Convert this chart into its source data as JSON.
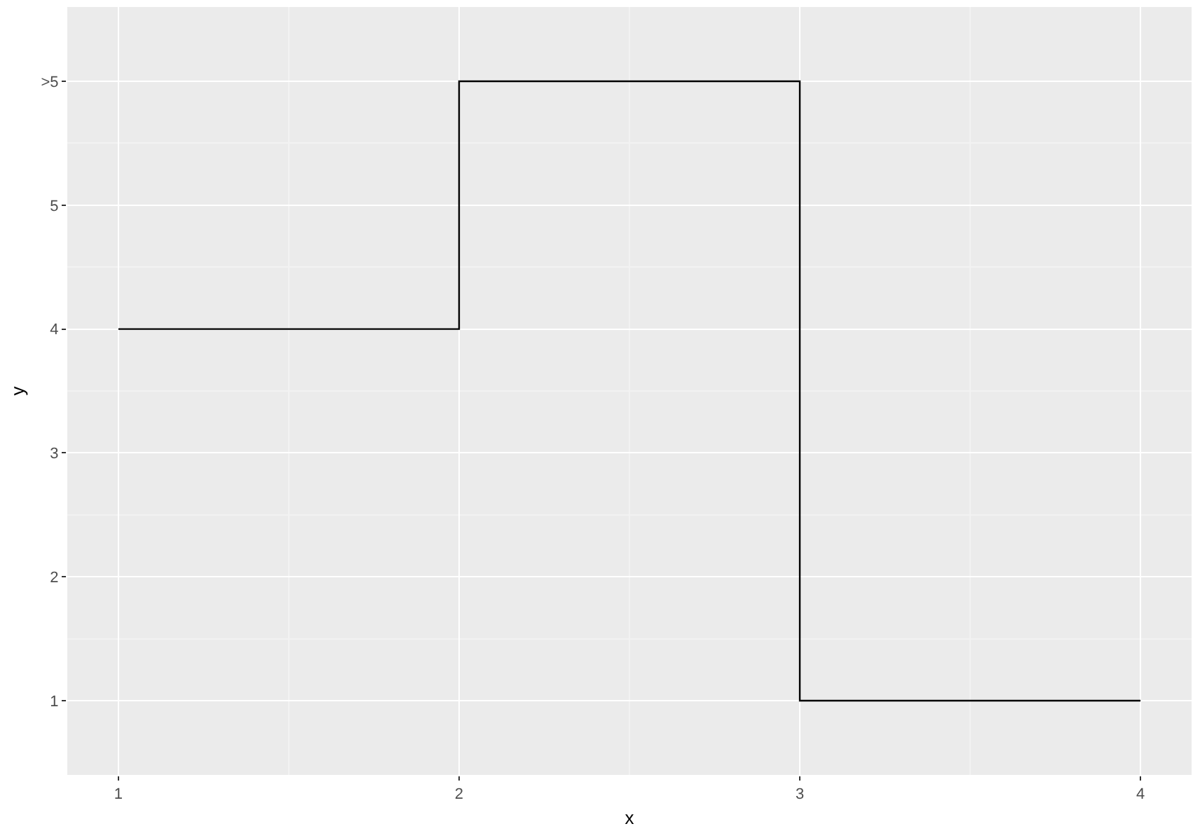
{
  "chart_data": {
    "type": "step",
    "xlabel": "x",
    "ylabel": "y",
    "x": [
      1,
      2,
      3,
      4
    ],
    "series": [
      {
        "color": "#000000",
        "values": [
          4,
          6,
          1,
          1
        ]
      }
    ],
    "xlim": [
      0.85,
      4.15
    ],
    "ylim": [
      0.4,
      6.6
    ],
    "xticks": [
      1,
      2,
      3,
      4
    ],
    "yticks": [
      1,
      2,
      3,
      4,
      5,
      {
        "value": 6,
        "label": ">5"
      }
    ],
    "grid": true,
    "marker": "none",
    "line_style": "solid"
  }
}
